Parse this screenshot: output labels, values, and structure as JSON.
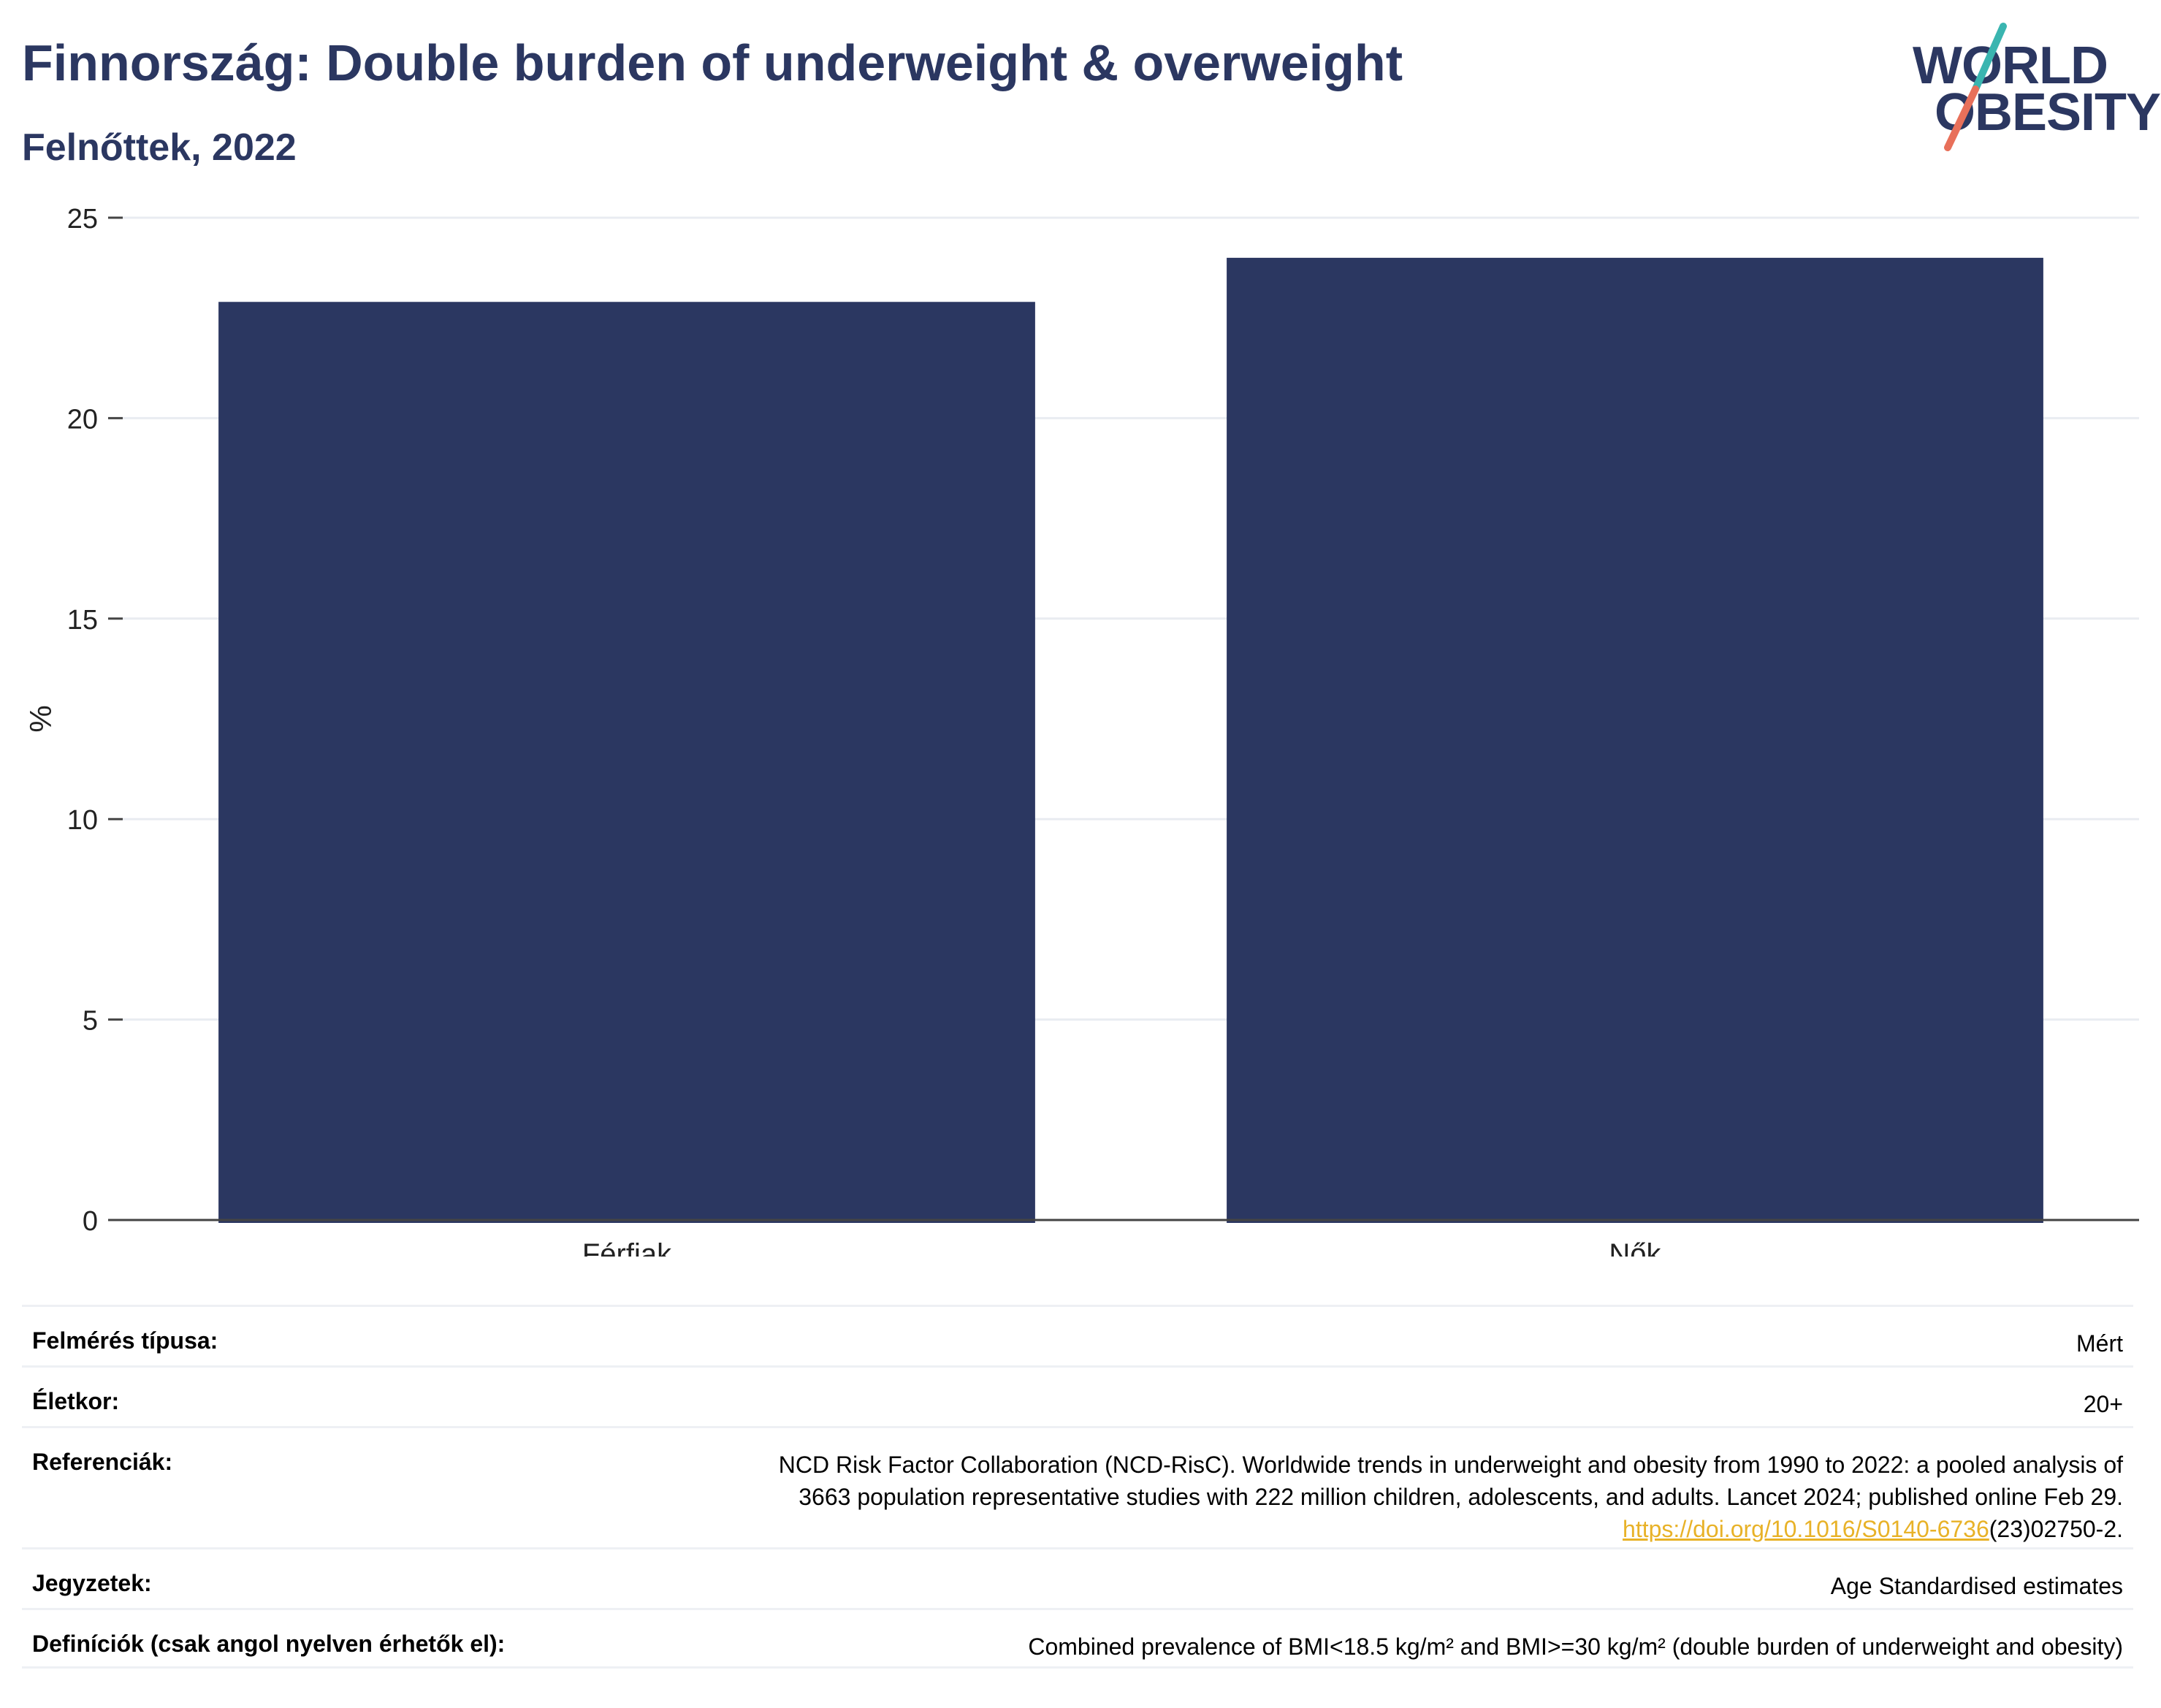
{
  "header": {
    "title": "Finnország: Double burden of underweight & overweight",
    "subtitle": "Felnőttek, 2022"
  },
  "logo": {
    "line1": "WORLD",
    "line2": "OBESITY",
    "colors": {
      "text": "#2b3761",
      "slash_top": "#3ab5b0",
      "slash_bottom": "#e8705a"
    }
  },
  "chart_data": {
    "type": "bar",
    "categories": [
      "Férfiak",
      "Nők"
    ],
    "values": [
      22.9,
      24.0
    ],
    "ylabel": "%",
    "ylim": [
      0,
      25
    ],
    "yticks": [
      0,
      5,
      10,
      15,
      20,
      25
    ],
    "grid": true,
    "bar_color": "#2b3761"
  },
  "meta": {
    "survey_type": {
      "label": "Felmérés típusa:",
      "value": "Mért"
    },
    "age": {
      "label": "Életkor:",
      "value": "20+"
    },
    "references": {
      "label": "Referenciák:",
      "line1": "NCD Risk Factor Collaboration (NCD-RisC). Worldwide trends in underweight and obesity from 1990 to 2022: a pooled analysis of",
      "line2": "3663 population representative studies with 222 million children, adolescents, and adults. Lancet 2024; published online Feb 29.",
      "link": "https://doi.org/10.1016/S0140-6736",
      "link_suffix": "(23)02750-2."
    },
    "notes": {
      "label": "Jegyzetek:",
      "value": "Age Standardised estimates"
    },
    "definitions": {
      "label": "Definíciók (csak angol nyelven érhetők el):",
      "value": "Combined prevalence of BMI<18.5 kg/m² and BMI>=30 kg/m² (double burden of underweight and obesity)"
    }
  }
}
